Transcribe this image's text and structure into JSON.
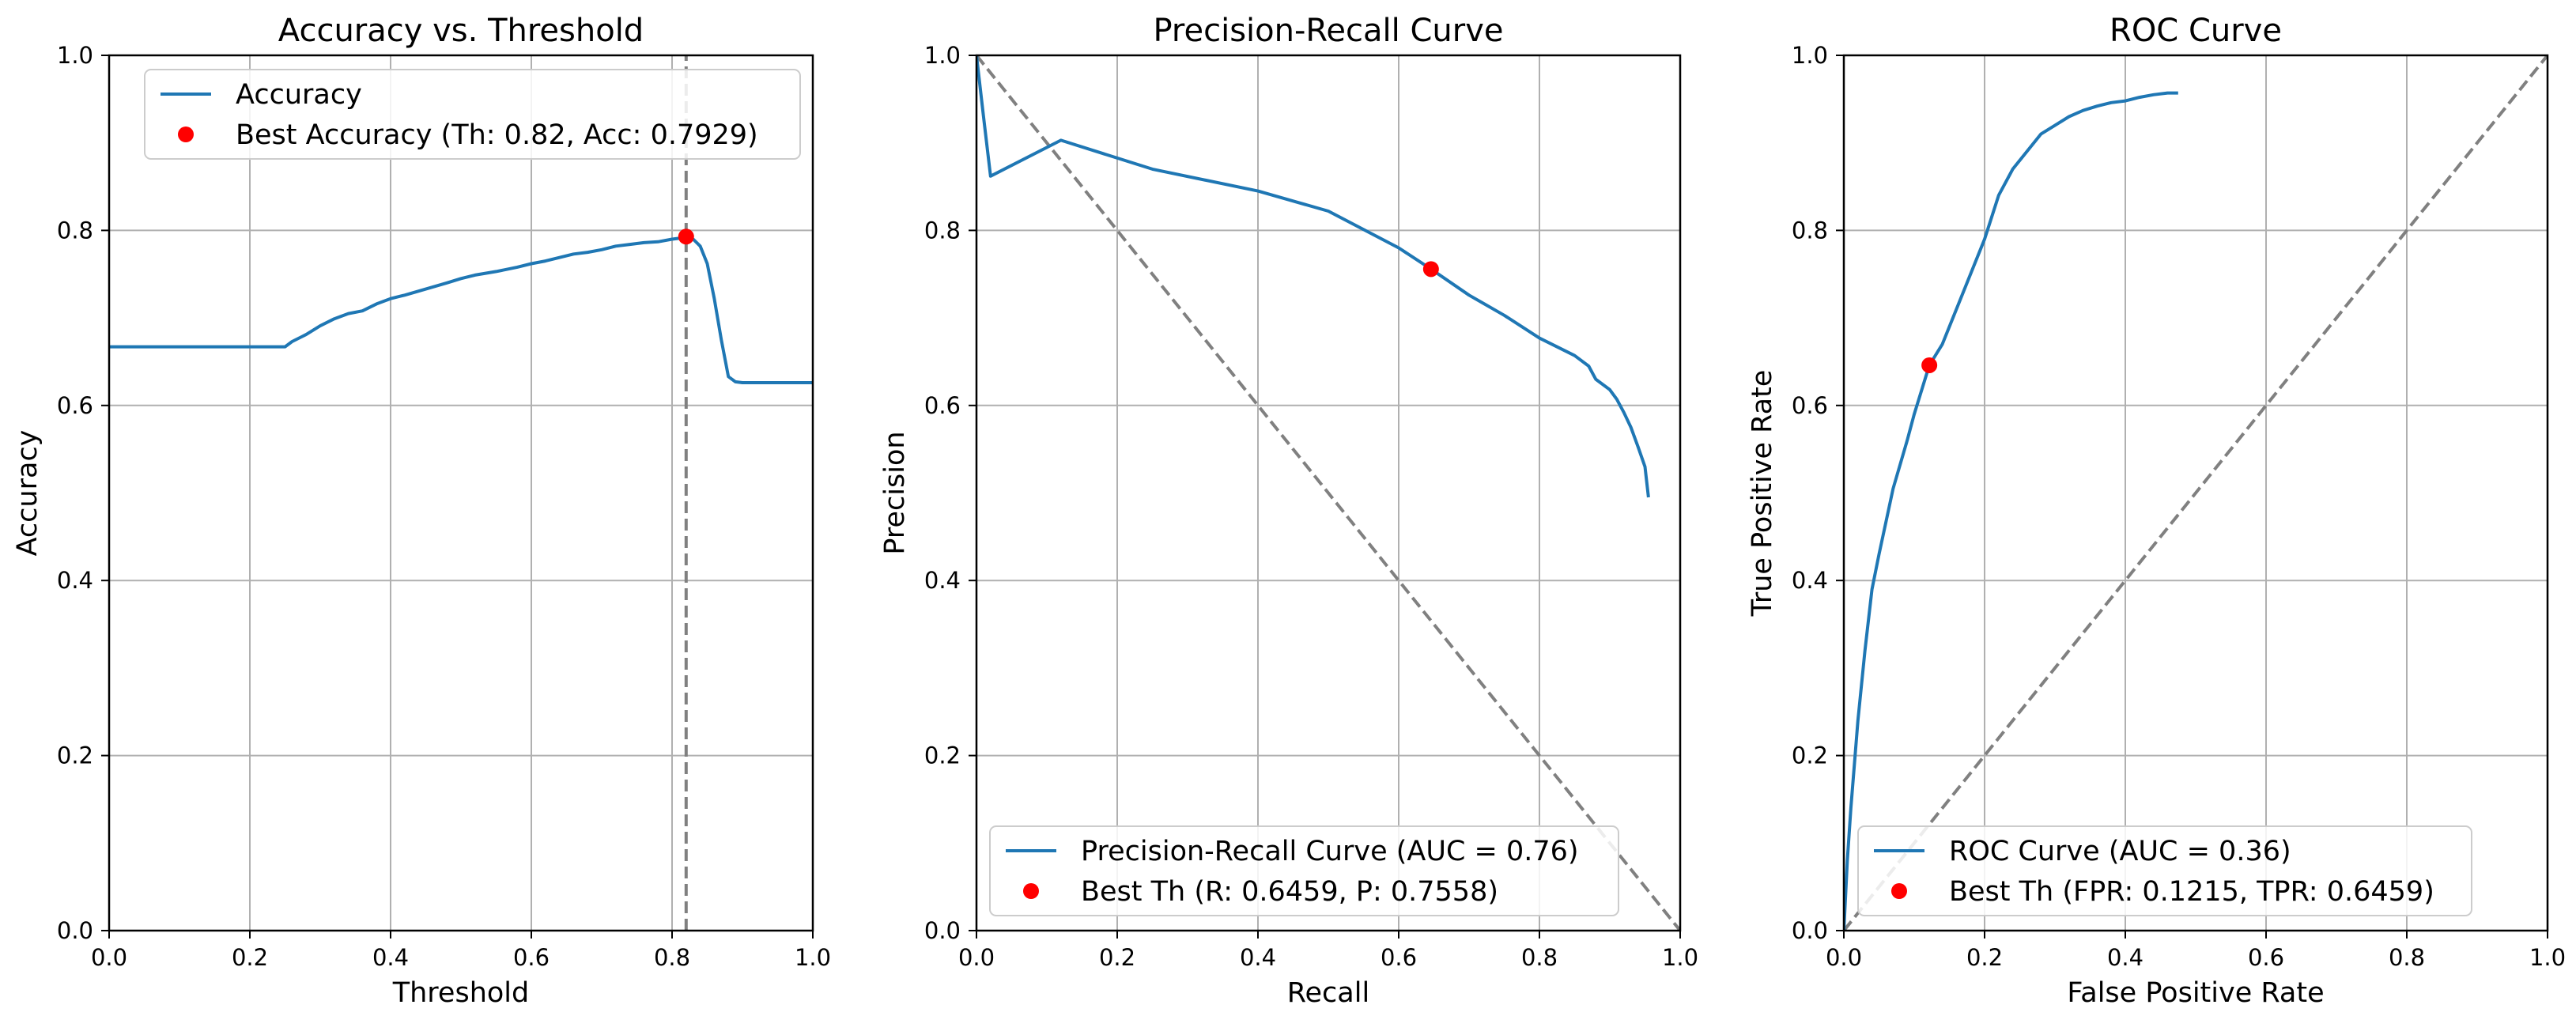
{
  "chart_data": [
    {
      "type": "line",
      "title": "Accuracy vs. Threshold",
      "xlabel": "Threshold",
      "ylabel": "Accuracy",
      "xlim": [
        0,
        1
      ],
      "ylim": [
        0,
        1
      ],
      "xticks": [
        "0.0",
        "0.2",
        "0.4",
        "0.6",
        "0.8",
        "1.0"
      ],
      "yticks": [
        "0.0",
        "0.2",
        "0.4",
        "0.6",
        "0.8",
        "1.0"
      ],
      "grid": true,
      "legend_position": "top-right",
      "series": [
        {
          "name": "Accuracy",
          "color": "#1f77b4",
          "x": [
            0.0,
            0.05,
            0.1,
            0.15,
            0.2,
            0.25,
            0.26,
            0.28,
            0.3,
            0.32,
            0.34,
            0.36,
            0.38,
            0.4,
            0.42,
            0.45,
            0.48,
            0.5,
            0.52,
            0.55,
            0.58,
            0.6,
            0.62,
            0.64,
            0.66,
            0.68,
            0.7,
            0.72,
            0.74,
            0.76,
            0.78,
            0.8,
            0.81,
            0.82,
            0.83,
            0.84,
            0.85,
            0.86,
            0.87,
            0.88,
            0.89,
            0.9,
            0.92,
            0.95,
            1.0
          ],
          "y": [
            0.667,
            0.667,
            0.667,
            0.667,
            0.667,
            0.667,
            0.673,
            0.681,
            0.691,
            0.699,
            0.705,
            0.708,
            0.716,
            0.722,
            0.726,
            0.733,
            0.74,
            0.745,
            0.749,
            0.753,
            0.758,
            0.762,
            0.765,
            0.769,
            0.773,
            0.775,
            0.778,
            0.782,
            0.784,
            0.786,
            0.787,
            0.79,
            0.791,
            0.7929,
            0.79,
            0.782,
            0.762,
            0.722,
            0.675,
            0.633,
            0.627,
            0.626,
            0.626,
            0.626,
            0.626
          ]
        },
        {
          "name": "Best Accuracy (Th: 0.82, Acc: 0.7929)",
          "color": "#ff0000",
          "marker": "point",
          "x": [
            0.82
          ],
          "y": [
            0.7929
          ]
        }
      ],
      "reference_lines": [
        {
          "orientation": "vertical",
          "x": 0.82,
          "color": "#808080",
          "style": "dashed"
        }
      ]
    },
    {
      "type": "line",
      "title": "Precision-Recall Curve",
      "xlabel": "Recall",
      "ylabel": "Precision",
      "xlim": [
        0,
        1
      ],
      "ylim": [
        0,
        1
      ],
      "xticks": [
        "0.0",
        "0.2",
        "0.4",
        "0.6",
        "0.8",
        "1.0"
      ],
      "yticks": [
        "0.0",
        "0.2",
        "0.4",
        "0.6",
        "0.8",
        "1.0"
      ],
      "grid": true,
      "legend_position": "bottom-center",
      "series": [
        {
          "name": "Precision-Recall Curve (AUC = 0.76)",
          "color": "#1f77b4",
          "x": [
            0.0,
            0.01,
            0.02,
            0.12,
            0.25,
            0.4,
            0.5,
            0.6,
            0.6459,
            0.7,
            0.75,
            0.8,
            0.85,
            0.87,
            0.88,
            0.9,
            0.91,
            0.92,
            0.93,
            0.94,
            0.95,
            0.955
          ],
          "y": [
            1.0,
            0.93,
            0.862,
            0.903,
            0.87,
            0.845,
            0.822,
            0.78,
            0.7558,
            0.726,
            0.703,
            0.677,
            0.657,
            0.645,
            0.63,
            0.618,
            0.607,
            0.592,
            0.575,
            0.553,
            0.53,
            0.495
          ]
        },
        {
          "name": "Best Th (R: 0.6459, P: 0.7558)",
          "color": "#ff0000",
          "marker": "point",
          "x": [
            0.6459
          ],
          "y": [
            0.7558
          ]
        }
      ],
      "reference_lines": [
        {
          "from": [
            0,
            1
          ],
          "to": [
            1,
            0
          ],
          "color": "#808080",
          "style": "dashed"
        }
      ]
    },
    {
      "type": "line",
      "title": "ROC Curve",
      "xlabel": "False Positive Rate",
      "ylabel": "True Positive Rate",
      "xlim": [
        0,
        1
      ],
      "ylim": [
        0,
        1
      ],
      "xticks": [
        "0.0",
        "0.2",
        "0.4",
        "0.6",
        "0.8",
        "1.0"
      ],
      "yticks": [
        "0.0",
        "0.2",
        "0.4",
        "0.6",
        "0.8",
        "1.0"
      ],
      "grid": true,
      "legend_position": "bottom-center",
      "series": [
        {
          "name": "ROC Curve (AUC = 0.36)",
          "color": "#1f77b4",
          "x": [
            0.0,
            0.005,
            0.01,
            0.02,
            0.03,
            0.04,
            0.05,
            0.07,
            0.09,
            0.1,
            0.1215,
            0.14,
            0.16,
            0.18,
            0.2,
            0.22,
            0.24,
            0.26,
            0.28,
            0.3,
            0.32,
            0.34,
            0.36,
            0.38,
            0.4,
            0.42,
            0.44,
            0.46,
            0.475
          ],
          "y": [
            0.0,
            0.08,
            0.14,
            0.24,
            0.32,
            0.39,
            0.43,
            0.505,
            0.56,
            0.59,
            0.6459,
            0.67,
            0.71,
            0.75,
            0.79,
            0.84,
            0.87,
            0.89,
            0.91,
            0.92,
            0.93,
            0.937,
            0.942,
            0.946,
            0.948,
            0.952,
            0.955,
            0.957,
            0.957
          ]
        },
        {
          "name": "Best Th (FPR: 0.1215, TPR: 0.6459)",
          "color": "#ff0000",
          "marker": "point",
          "x": [
            0.1215
          ],
          "y": [
            0.6459
          ]
        }
      ],
      "reference_lines": [
        {
          "from": [
            0,
            0
          ],
          "to": [
            1,
            1
          ],
          "color": "#808080",
          "style": "dashed"
        }
      ]
    }
  ]
}
